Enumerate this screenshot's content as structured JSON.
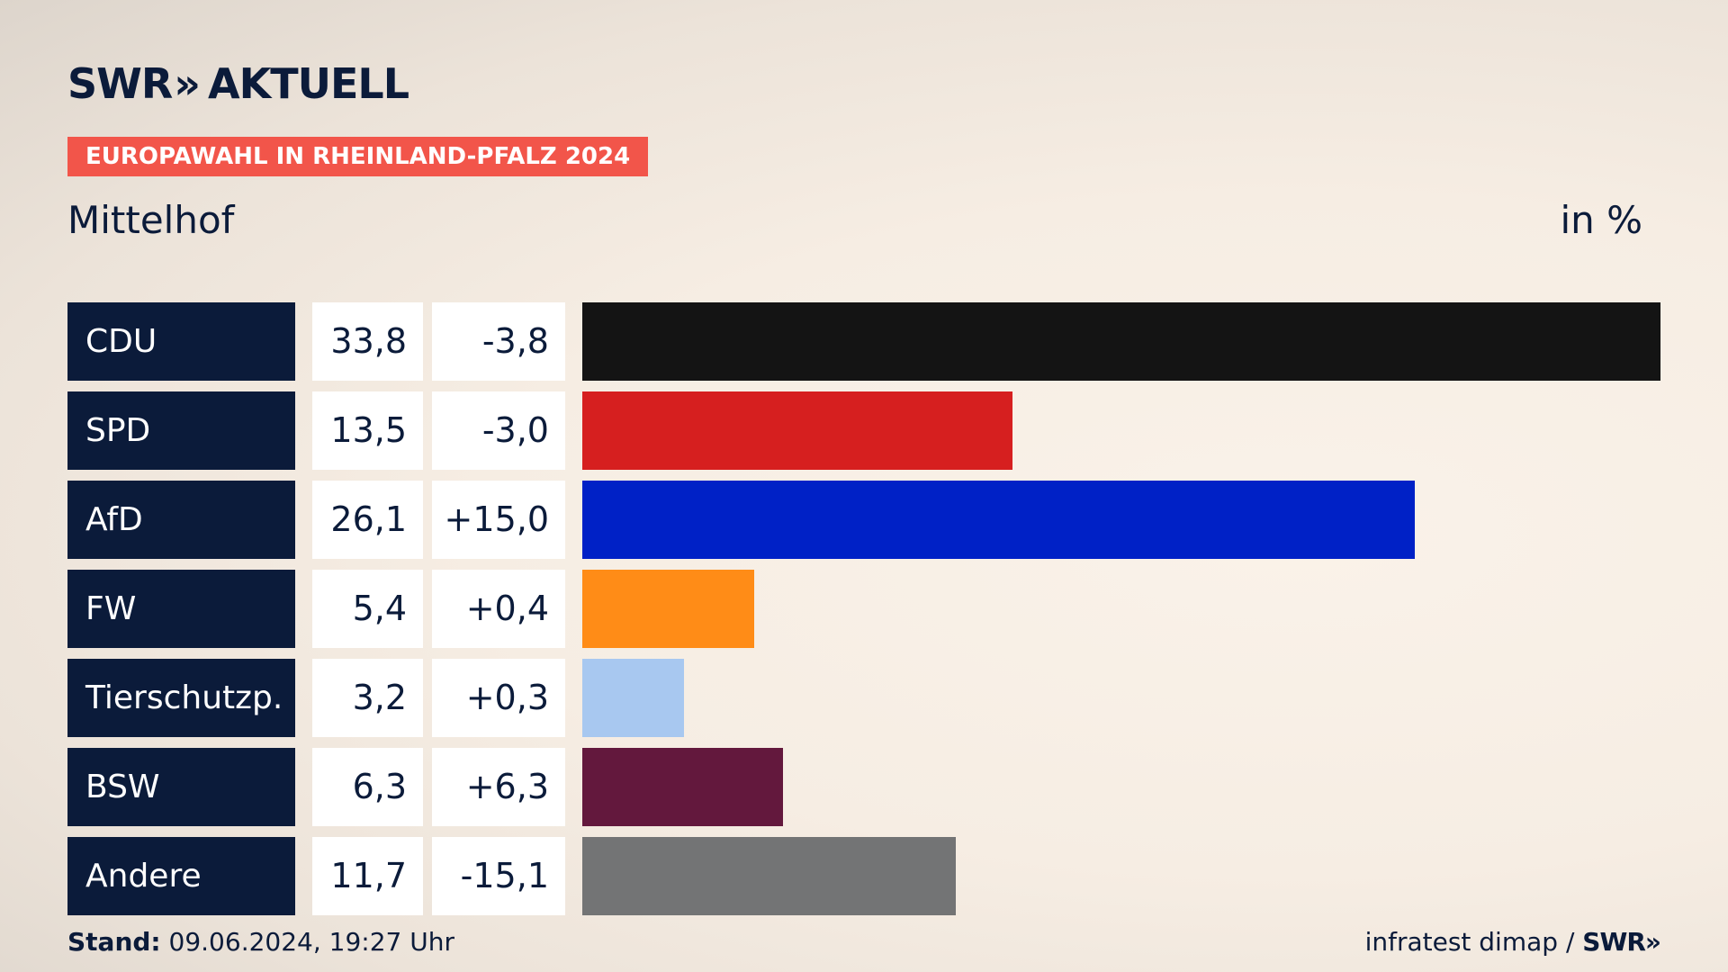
{
  "logo": {
    "text": "SWR",
    "chevrons": "»",
    "text2": "AKTUELL"
  },
  "tag": "EUROPAWAHL IN RHEINLAND-PFALZ 2024",
  "subtitle": "Mittelhof",
  "unit": "in %",
  "footer": {
    "stand_label": "Stand:",
    "stand_value": "09.06.2024, 19:27 Uhr",
    "source": "infratest dimap /",
    "source_logo": "SWR»"
  },
  "chart_data": {
    "type": "bar",
    "orientation": "horizontal",
    "title": "Mittelhof",
    "unit": "in %",
    "categories": [
      "CDU",
      "SPD",
      "AfD",
      "FW",
      "Tierschutzp.",
      "BSW",
      "Andere"
    ],
    "values": [
      33.8,
      13.5,
      26.1,
      5.4,
      3.2,
      6.3,
      11.7
    ],
    "value_labels": [
      "33,8",
      "13,5",
      "26,1",
      "5,4",
      "3,2",
      "6,3",
      "11,7"
    ],
    "change_labels": [
      "-3,8",
      "-3,0",
      "+15,0",
      "+0,4",
      "+0,3",
      "+6,3",
      "-15,1"
    ],
    "changes": [
      -3.8,
      -3.0,
      15.0,
      0.4,
      0.3,
      6.3,
      -15.1
    ],
    "colors": [
      "#141414",
      "#d61f1f",
      "#0021c6",
      "#ff8c17",
      "#a8c8f0",
      "#63183d",
      "#737475"
    ],
    "xlim": [
      0,
      33.8
    ]
  }
}
